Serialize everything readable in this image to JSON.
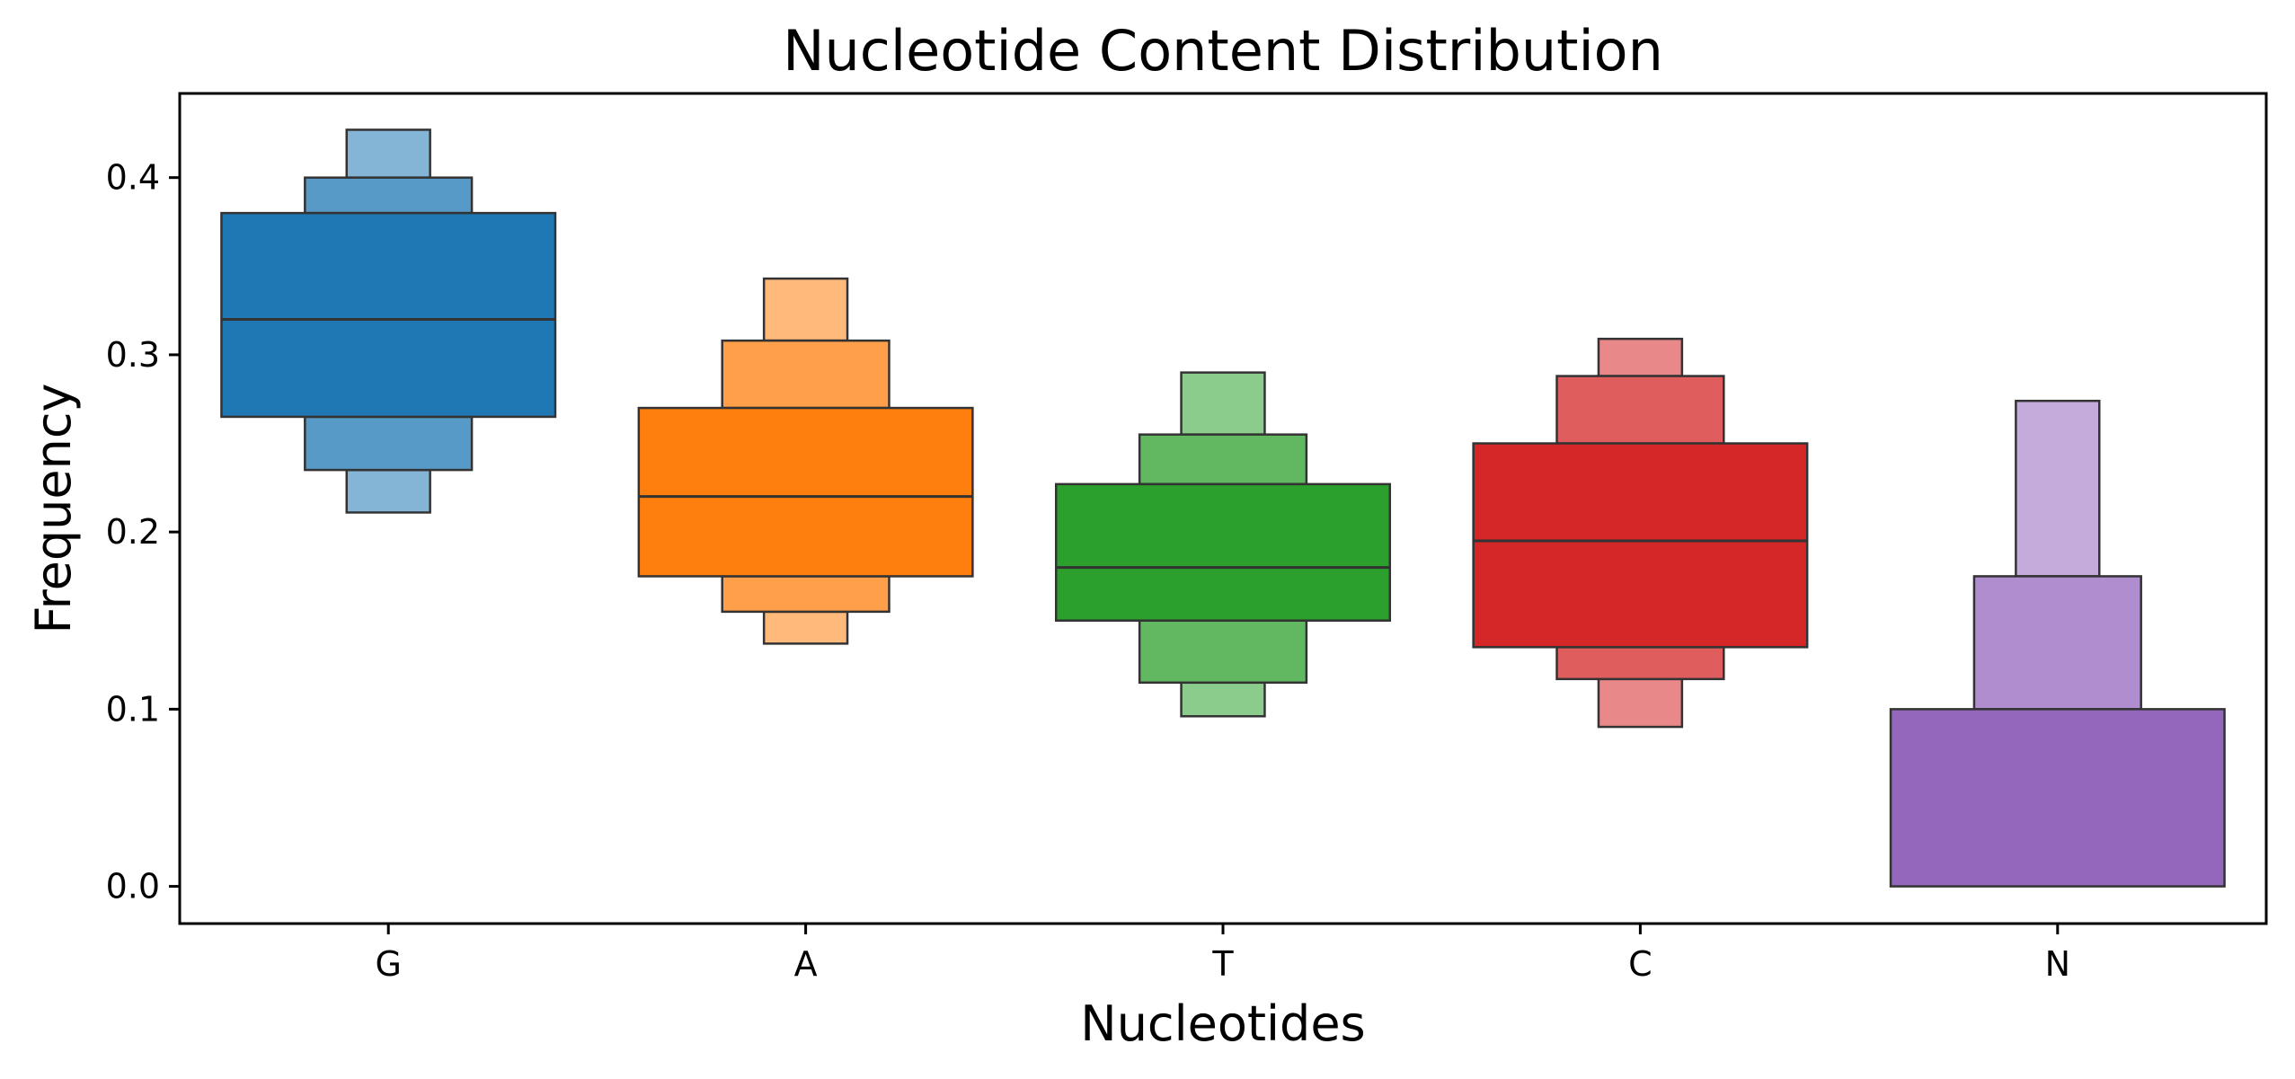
{
  "chart_data": {
    "type": "boxen",
    "title": "Nucleotide Content Distribution",
    "xlabel": "Nucleotides",
    "ylabel": "Frequency",
    "ylim": [
      -0.021,
      0.4475
    ],
    "yticks": [
      0.0,
      0.1,
      0.2,
      0.3,
      0.4
    ],
    "ytick_labels": [
      "0.0",
      "0.1",
      "0.2",
      "0.3",
      "0.4"
    ],
    "grid": false,
    "categories": [
      "G",
      "A",
      "T",
      "C",
      "N"
    ],
    "series": [
      {
        "category": "G",
        "color": "#1f77b4",
        "median": 0.32,
        "levels": [
          {
            "low": 0.265,
            "high": 0.38
          },
          {
            "low": 0.235,
            "high": 0.4
          },
          {
            "low": 0.211,
            "high": 0.427
          }
        ]
      },
      {
        "category": "A",
        "color": "#ff7f0e",
        "median": 0.22,
        "levels": [
          {
            "low": 0.175,
            "high": 0.27
          },
          {
            "low": 0.155,
            "high": 0.308
          },
          {
            "low": 0.137,
            "high": 0.343
          }
        ]
      },
      {
        "category": "T",
        "color": "#2ca02c",
        "median": 0.18,
        "levels": [
          {
            "low": 0.15,
            "high": 0.227
          },
          {
            "low": 0.115,
            "high": 0.255
          },
          {
            "low": 0.096,
            "high": 0.29
          }
        ]
      },
      {
        "category": "C",
        "color": "#d62728",
        "median": 0.195,
        "levels": [
          {
            "low": 0.135,
            "high": 0.25
          },
          {
            "low": 0.117,
            "high": 0.288
          },
          {
            "low": 0.09,
            "high": 0.309
          }
        ]
      },
      {
        "category": "N",
        "color": "#9467bd",
        "median": 0.0,
        "levels": [
          {
            "low": 0.0,
            "high": 0.1
          },
          {
            "low": 0.1,
            "high": 0.175
          },
          {
            "low": 0.175,
            "high": 0.274
          }
        ]
      }
    ]
  }
}
